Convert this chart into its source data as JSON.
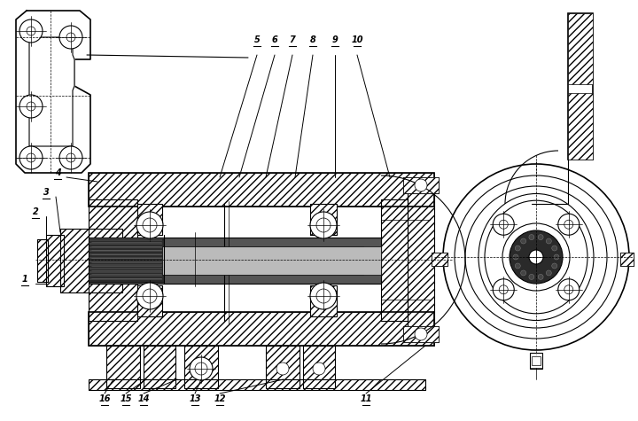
{
  "bg_color": "#ffffff",
  "line_color": "#000000",
  "figsize": [
    7.2,
    4.75
  ],
  "dpi": 100
}
